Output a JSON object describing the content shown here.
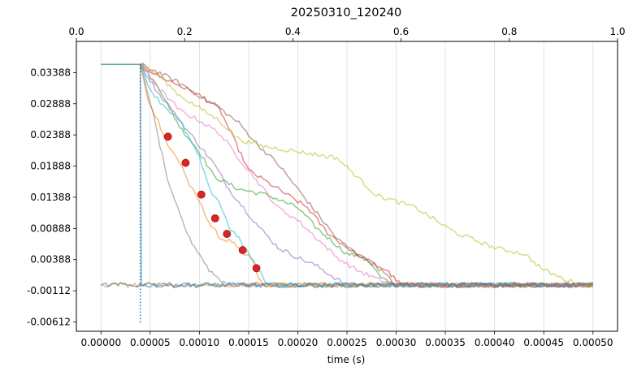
{
  "chart_data": {
    "type": "line",
    "title": "20250310_120240",
    "xlabel": "time (s)",
    "ylabel": "",
    "xlim": [
      -2.5e-05,
      0.000525
    ],
    "ylim": [
      -0.00762,
      0.03888
    ],
    "top_xlim": [
      0.0,
      1.0
    ],
    "x_ticks": [
      "0.00000",
      "0.00005",
      "0.00010",
      "0.00015",
      "0.00020",
      "0.00025",
      "0.00030",
      "0.00035",
      "0.00040",
      "0.00045",
      "0.00050"
    ],
    "y_ticks": [
      "-0.00612",
      "-0.00112",
      "0.00388",
      "0.00888",
      "0.01388",
      "0.01888",
      "0.02388",
      "0.02888",
      "0.03388"
    ],
    "top_ticks": [
      "0.0",
      "0.2",
      "0.4",
      "0.6",
      "0.8",
      "1.0"
    ],
    "grid": "vertical",
    "trigger_line": {
      "x": 4e-05,
      "y_from": -0.0062,
      "y_to": 0.0352,
      "color": "#1f77b4",
      "style": "dotted"
    },
    "initial_level": 0.0352,
    "baseline_level": -0.0002,
    "noise_amplitude": 0.0004,
    "trigger_time": 4e-05,
    "series": [
      {
        "color": "#1f77b4",
        "points": [
          [
            4e-05,
            0.0352
          ],
          [
            4.1e-05,
            -0.0002
          ],
          [
            0.0005,
            -0.0002
          ]
        ]
      },
      {
        "color": "#ff7f0e",
        "points": [
          [
            4e-05,
            0.0352
          ],
          [
            4.8e-05,
            0.0292
          ],
          [
            5.8e-05,
            0.0262
          ],
          [
            6.8e-05,
            0.0222
          ],
          [
            8.2e-05,
            0.019
          ],
          [
            9e-05,
            0.0158
          ],
          [
            0.0001,
            0.0132
          ],
          [
            0.000112,
            0.0092
          ],
          [
            0.000122,
            0.0072
          ],
          [
            0.000133,
            0.0068
          ],
          [
            0.000143,
            0.0048
          ],
          [
            0.000153,
            0.0042
          ],
          [
            0.00016,
            0.0008
          ],
          [
            0.000168,
            -0.0002
          ],
          [
            0.0005,
            -0.0002
          ]
        ]
      },
      {
        "color": "#2ca02c",
        "points": [
          [
            4e-05,
            0.0352
          ],
          [
            6e-05,
            0.0312
          ],
          [
            8e-05,
            0.0252
          ],
          [
            0.0001,
            0.0212
          ],
          [
            0.000115,
            0.0172
          ],
          [
            0.00014,
            0.0152
          ],
          [
            0.00017,
            0.0142
          ],
          [
            0.0002,
            0.0122
          ],
          [
            0.00022,
            0.0088
          ],
          [
            0.00025,
            0.0048
          ],
          [
            0.00027,
            0.0042
          ],
          [
            0.000285,
            0.0008
          ],
          [
            0.0003,
            -0.0002
          ],
          [
            0.0005,
            -0.0002
          ]
        ]
      },
      {
        "color": "#d62728",
        "points": [
          [
            4e-05,
            0.0352
          ],
          [
            6e-05,
            0.0332
          ],
          [
            8e-05,
            0.0318
          ],
          [
            0.0001,
            0.0302
          ],
          [
            0.00012,
            0.0282
          ],
          [
            0.000135,
            0.0232
          ],
          [
            0.00015,
            0.0182
          ],
          [
            0.00017,
            0.0162
          ],
          [
            0.00019,
            0.0142
          ],
          [
            0.00021,
            0.0122
          ],
          [
            0.00023,
            0.0082
          ],
          [
            0.00025,
            0.0058
          ],
          [
            0.00027,
            0.0038
          ],
          [
            0.00029,
            0.0022
          ],
          [
            0.000305,
            -0.0002
          ],
          [
            0.0005,
            -0.0002
          ]
        ]
      },
      {
        "color": "#9467bd",
        "points": [
          [
            4e-05,
            0.0352
          ],
          [
            6e-05,
            0.0302
          ],
          [
            8e-05,
            0.0262
          ],
          [
            0.0001,
            0.0222
          ],
          [
            0.000115,
            0.0192
          ],
          [
            0.00013,
            0.0152
          ],
          [
            0.000145,
            0.0122
          ],
          [
            0.00016,
            0.0092
          ],
          [
            0.00018,
            0.0058
          ],
          [
            0.0002,
            0.0042
          ],
          [
            0.00022,
            0.0028
          ],
          [
            0.000235,
            0.0012
          ],
          [
            0.00025,
            -0.0002
          ],
          [
            0.0005,
            -0.0002
          ]
        ]
      },
      {
        "color": "#8c564b",
        "points": [
          [
            4e-05,
            0.0352
          ],
          [
            6e-05,
            0.0338
          ],
          [
            8e-05,
            0.0322
          ],
          [
            0.0001,
            0.0302
          ],
          [
            0.00012,
            0.0282
          ],
          [
            0.00014,
            0.0258
          ],
          [
            0.00016,
            0.0222
          ],
          [
            0.00018,
            0.0192
          ],
          [
            0.0002,
            0.0152
          ],
          [
            0.00022,
            0.0112
          ],
          [
            0.00024,
            0.0072
          ],
          [
            0.00026,
            0.0048
          ],
          [
            0.00028,
            0.0028
          ],
          [
            0.0003,
            -0.0002
          ],
          [
            0.0005,
            -0.0002
          ]
        ]
      },
      {
        "color": "#e377c2",
        "points": [
          [
            4e-05,
            0.0352
          ],
          [
            6e-05,
            0.0312
          ],
          [
            8e-05,
            0.0278
          ],
          [
            0.0001,
            0.0262
          ],
          [
            0.00012,
            0.0242
          ],
          [
            0.00014,
            0.0202
          ],
          [
            0.00016,
            0.0162
          ],
          [
            0.00018,
            0.0122
          ],
          [
            0.0002,
            0.0102
          ],
          [
            0.00022,
            0.0072
          ],
          [
            0.00024,
            0.0042
          ],
          [
            0.00026,
            0.0022
          ],
          [
            0.00028,
            0.0008
          ],
          [
            0.0003,
            -0.0002
          ],
          [
            0.0005,
            -0.0002
          ]
        ]
      },
      {
        "color": "#7f7f7f",
        "points": [
          [
            4e-05,
            0.0352
          ],
          [
            5e-05,
            0.0292
          ],
          [
            6e-05,
            0.0222
          ],
          [
            7e-05,
            0.0152
          ],
          [
            8e-05,
            0.0112
          ],
          [
            9e-05,
            0.0072
          ],
          [
            0.0001,
            0.0048
          ],
          [
            0.00011,
            0.0022
          ],
          [
            0.00012,
            0.0008
          ],
          [
            0.00013,
            -0.0002
          ],
          [
            0.0005,
            -0.0002
          ]
        ]
      },
      {
        "color": "#bcbd22",
        "points": [
          [
            4e-05,
            0.0352
          ],
          [
            6e-05,
            0.0332
          ],
          [
            8e-05,
            0.0302
          ],
          [
            0.0001,
            0.0282
          ],
          [
            0.00012,
            0.0262
          ],
          [
            0.00014,
            0.0232
          ],
          [
            0.00016,
            0.0222
          ],
          [
            0.0002,
            0.0212
          ],
          [
            0.00024,
            0.0202
          ],
          [
            0.00026,
            0.0172
          ],
          [
            0.00028,
            0.0142
          ],
          [
            0.00032,
            0.0122
          ],
          [
            0.00036,
            0.0082
          ],
          [
            0.0004,
            0.0058
          ],
          [
            0.00043,
            0.0048
          ],
          [
            0.00045,
            0.0022
          ],
          [
            0.00047,
            0.0008
          ],
          [
            0.00049,
            -0.0002
          ],
          [
            0.0005,
            -0.0002
          ]
        ]
      },
      {
        "color": "#17becf",
        "points": [
          [
            4e-05,
            0.0352
          ],
          [
            5e-05,
            0.0312
          ],
          [
            6e-05,
            0.0292
          ],
          [
            8e-05,
            0.0262
          ],
          [
            0.0001,
            0.0202
          ],
          [
            0.00011,
            0.0152
          ],
          [
            0.00012,
            0.0132
          ],
          [
            0.00013,
            0.0092
          ],
          [
            0.00014,
            0.0072
          ],
          [
            0.00015,
            0.0048
          ],
          [
            0.00016,
            0.0022
          ],
          [
            0.00017,
            -0.0002
          ],
          [
            0.0005,
            -0.0002
          ]
        ]
      },
      {
        "color": "#ff7f0e",
        "points": [
          [
            0.0,
            -0.0002
          ],
          [
            0.0005,
            -0.0002
          ]
        ]
      },
      {
        "color": "#1f77b4",
        "points": [
          [
            0.0,
            -0.0002
          ],
          [
            0.0005,
            -0.0002
          ]
        ]
      }
    ],
    "markers": {
      "color": "#d62728",
      "points": [
        [
          6.8e-05,
          0.0236
        ],
        [
          8.6e-05,
          0.0194
        ],
        [
          0.000102,
          0.0143
        ],
        [
          0.000116,
          0.0105
        ],
        [
          0.000128,
          0.008
        ],
        [
          0.000144,
          0.0054
        ],
        [
          0.000158,
          0.0025
        ]
      ]
    }
  }
}
